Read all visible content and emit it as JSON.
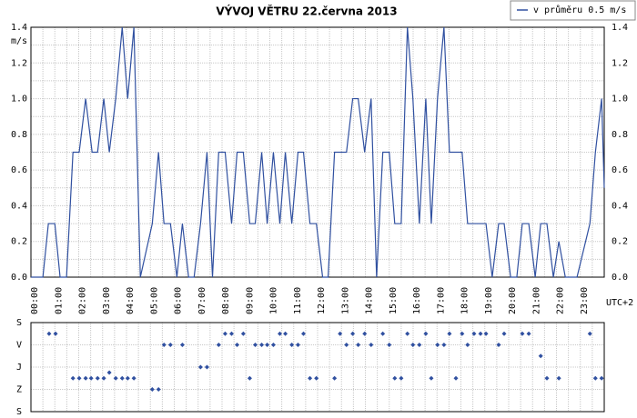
{
  "chart_data": [
    {
      "type": "line",
      "title": "VÝVOJ VĚTRU  22.června 2013",
      "y_label": "m/s",
      "x_label": "UTC+2",
      "legend": "top-right",
      "grid": true,
      "xlim": [
        0,
        24
      ],
      "xticks": [
        {
          "value": 0,
          "label": "00:00"
        },
        {
          "value": 1,
          "label": "01:00"
        },
        {
          "value": 2,
          "label": "02:00"
        },
        {
          "value": 3,
          "label": "03:00"
        },
        {
          "value": 4,
          "label": "04:00"
        },
        {
          "value": 5,
          "label": "05:00"
        },
        {
          "value": 6,
          "label": "06:00"
        },
        {
          "value": 7,
          "label": "07:00"
        },
        {
          "value": 8,
          "label": "08:00"
        },
        {
          "value": 9,
          "label": "09:00"
        },
        {
          "value": 10,
          "label": "10:00"
        },
        {
          "value": 11,
          "label": "11:00"
        },
        {
          "value": 12,
          "label": "12:00"
        },
        {
          "value": 13,
          "label": "13:00"
        },
        {
          "value": 14,
          "label": "14:00"
        },
        {
          "value": 15,
          "label": "15:00"
        },
        {
          "value": 16,
          "label": "16:00"
        },
        {
          "value": 17,
          "label": "17:00"
        },
        {
          "value": 18,
          "label": "18:00"
        },
        {
          "value": 19,
          "label": "19:00"
        },
        {
          "value": 20,
          "label": "20:00"
        },
        {
          "value": 21,
          "label": "21:00"
        },
        {
          "value": 22,
          "label": "22:00"
        },
        {
          "value": 23,
          "label": "23:00"
        }
      ],
      "ylim": [
        0,
        1.4
      ],
      "yticks": [
        {
          "value": 0,
          "label": "0.0"
        },
        {
          "value": 0.2,
          "label": "0.2"
        },
        {
          "value": 0.4,
          "label": "0.4"
        },
        {
          "value": 0.6,
          "label": "0.6"
        },
        {
          "value": 0.8,
          "label": "0.8"
        },
        {
          "value": 1.0,
          "label": "1.0"
        },
        {
          "value": 1.2,
          "label": "1.2"
        },
        {
          "value": 1.4,
          "label": "1.4"
        }
      ],
      "x": [
        0,
        0.5,
        0.73,
        1.0,
        1.22,
        1.49,
        1.76,
        2.02,
        2.29,
        2.56,
        2.79,
        3.05,
        3.28,
        3.55,
        3.82,
        4.05,
        4.31,
        4.58,
        5.08,
        5.34,
        5.57,
        5.84,
        6.11,
        6.34,
        6.6,
        6.83,
        7.1,
        7.37,
        7.6,
        7.86,
        8.13,
        8.4,
        8.63,
        8.89,
        9.16,
        9.39,
        9.66,
        9.89,
        10.15,
        10.42,
        10.65,
        10.92,
        11.18,
        11.41,
        11.68,
        11.95,
        12.21,
        12.44,
        12.71,
        13.21,
        13.47,
        13.7,
        13.97,
        14.24,
        14.47,
        14.73,
        15.0,
        15.23,
        15.5,
        15.76,
        15.99,
        16.26,
        16.53,
        16.76,
        17.02,
        17.29,
        17.52,
        18.05,
        18.28,
        19.05,
        19.31,
        19.58,
        19.81,
        20.08,
        20.34,
        20.57,
        20.84,
        21.11,
        21.34,
        21.6,
        21.87,
        22.1,
        22.37,
        22.86,
        23.4,
        23.63,
        23.89,
        24.0
      ],
      "series": [
        {
          "name": "v průměru 0.5 m/s",
          "color": "#3050a0",
          "values": [
            0,
            0,
            0.3,
            0.3,
            0,
            0,
            0.7,
            0.7,
            1.0,
            0.7,
            0.7,
            1.0,
            0.7,
            1.0,
            1.4,
            1.0,
            1.4,
            0,
            0.3,
            0.7,
            0.3,
            0.3,
            0,
            0.3,
            0,
            0,
            0.3,
            0.7,
            0,
            0.7,
            0.7,
            0.3,
            0.7,
            0.7,
            0.3,
            0.3,
            0.7,
            0.3,
            0.7,
            0.3,
            0.7,
            0.3,
            0.7,
            0.7,
            0.3,
            0.3,
            0,
            0,
            0.7,
            0.7,
            1.0,
            1.0,
            0.7,
            1.0,
            0,
            0.7,
            0.7,
            0.3,
            0.3,
            1.4,
            1.0,
            0.3,
            1.0,
            0.3,
            1.0,
            1.4,
            0.7,
            0.7,
            0.3,
            0.3,
            0,
            0.3,
            0.3,
            0,
            0,
            0.3,
            0.3,
            0,
            0.3,
            0.3,
            0,
            0.2,
            0,
            0,
            0.3,
            0.7,
            1.0,
            0.5
          ]
        }
      ]
    },
    {
      "type": "scatter",
      "xlim": [
        0,
        24
      ],
      "xticks": [
        0,
        1,
        2,
        3,
        4,
        5,
        6,
        7,
        8,
        9,
        10,
        11,
        12,
        13,
        14,
        15,
        16,
        17,
        18,
        19,
        20,
        21,
        22,
        23
      ],
      "ylim": [
        0,
        360
      ],
      "yticks": [
        {
          "value": 0,
          "label": "S"
        },
        {
          "value": 90,
          "label": "V"
        },
        {
          "value": 180,
          "label": "J"
        },
        {
          "value": 270,
          "label": "Z"
        },
        {
          "value": 360,
          "label": "S"
        }
      ],
      "color": "#3050a0",
      "x": [
        0.76,
        1.03,
        1.76,
        2.02,
        2.29,
        2.52,
        2.79,
        3.05,
        3.28,
        3.55,
        3.82,
        4.05,
        4.31,
        5.08,
        5.34,
        5.57,
        5.84,
        6.34,
        7.1,
        7.37,
        7.86,
        8.13,
        8.4,
        8.63,
        8.89,
        9.16,
        9.39,
        9.66,
        9.89,
        10.15,
        10.42,
        10.65,
        10.92,
        11.18,
        11.41,
        11.68,
        11.95,
        12.71,
        12.94,
        13.21,
        13.47,
        13.7,
        13.97,
        14.24,
        14.73,
        15.0,
        15.23,
        15.5,
        15.76,
        15.99,
        16.26,
        16.53,
        16.76,
        17.02,
        17.29,
        17.52,
        17.79,
        18.05,
        18.28,
        18.55,
        18.82,
        19.05,
        19.58,
        19.81,
        20.57,
        20.84,
        21.34,
        21.6,
        22.1,
        23.4,
        23.63,
        23.89
      ],
      "values": [
        45,
        45,
        225,
        225,
        225,
        225,
        225,
        225,
        202,
        225,
        225,
        225,
        225,
        270,
        270,
        90,
        90,
        90,
        180,
        180,
        90,
        45,
        45,
        90,
        45,
        225,
        90,
        90,
        90,
        90,
        45,
        45,
        90,
        90,
        45,
        225,
        225,
        225,
        45,
        90,
        45,
        90,
        45,
        90,
        45,
        90,
        225,
        225,
        45,
        90,
        90,
        45,
        225,
        90,
        90,
        45,
        225,
        45,
        90,
        45,
        45,
        45,
        90,
        45,
        45,
        45,
        135,
        225,
        225,
        45,
        225,
        225
      ]
    }
  ]
}
